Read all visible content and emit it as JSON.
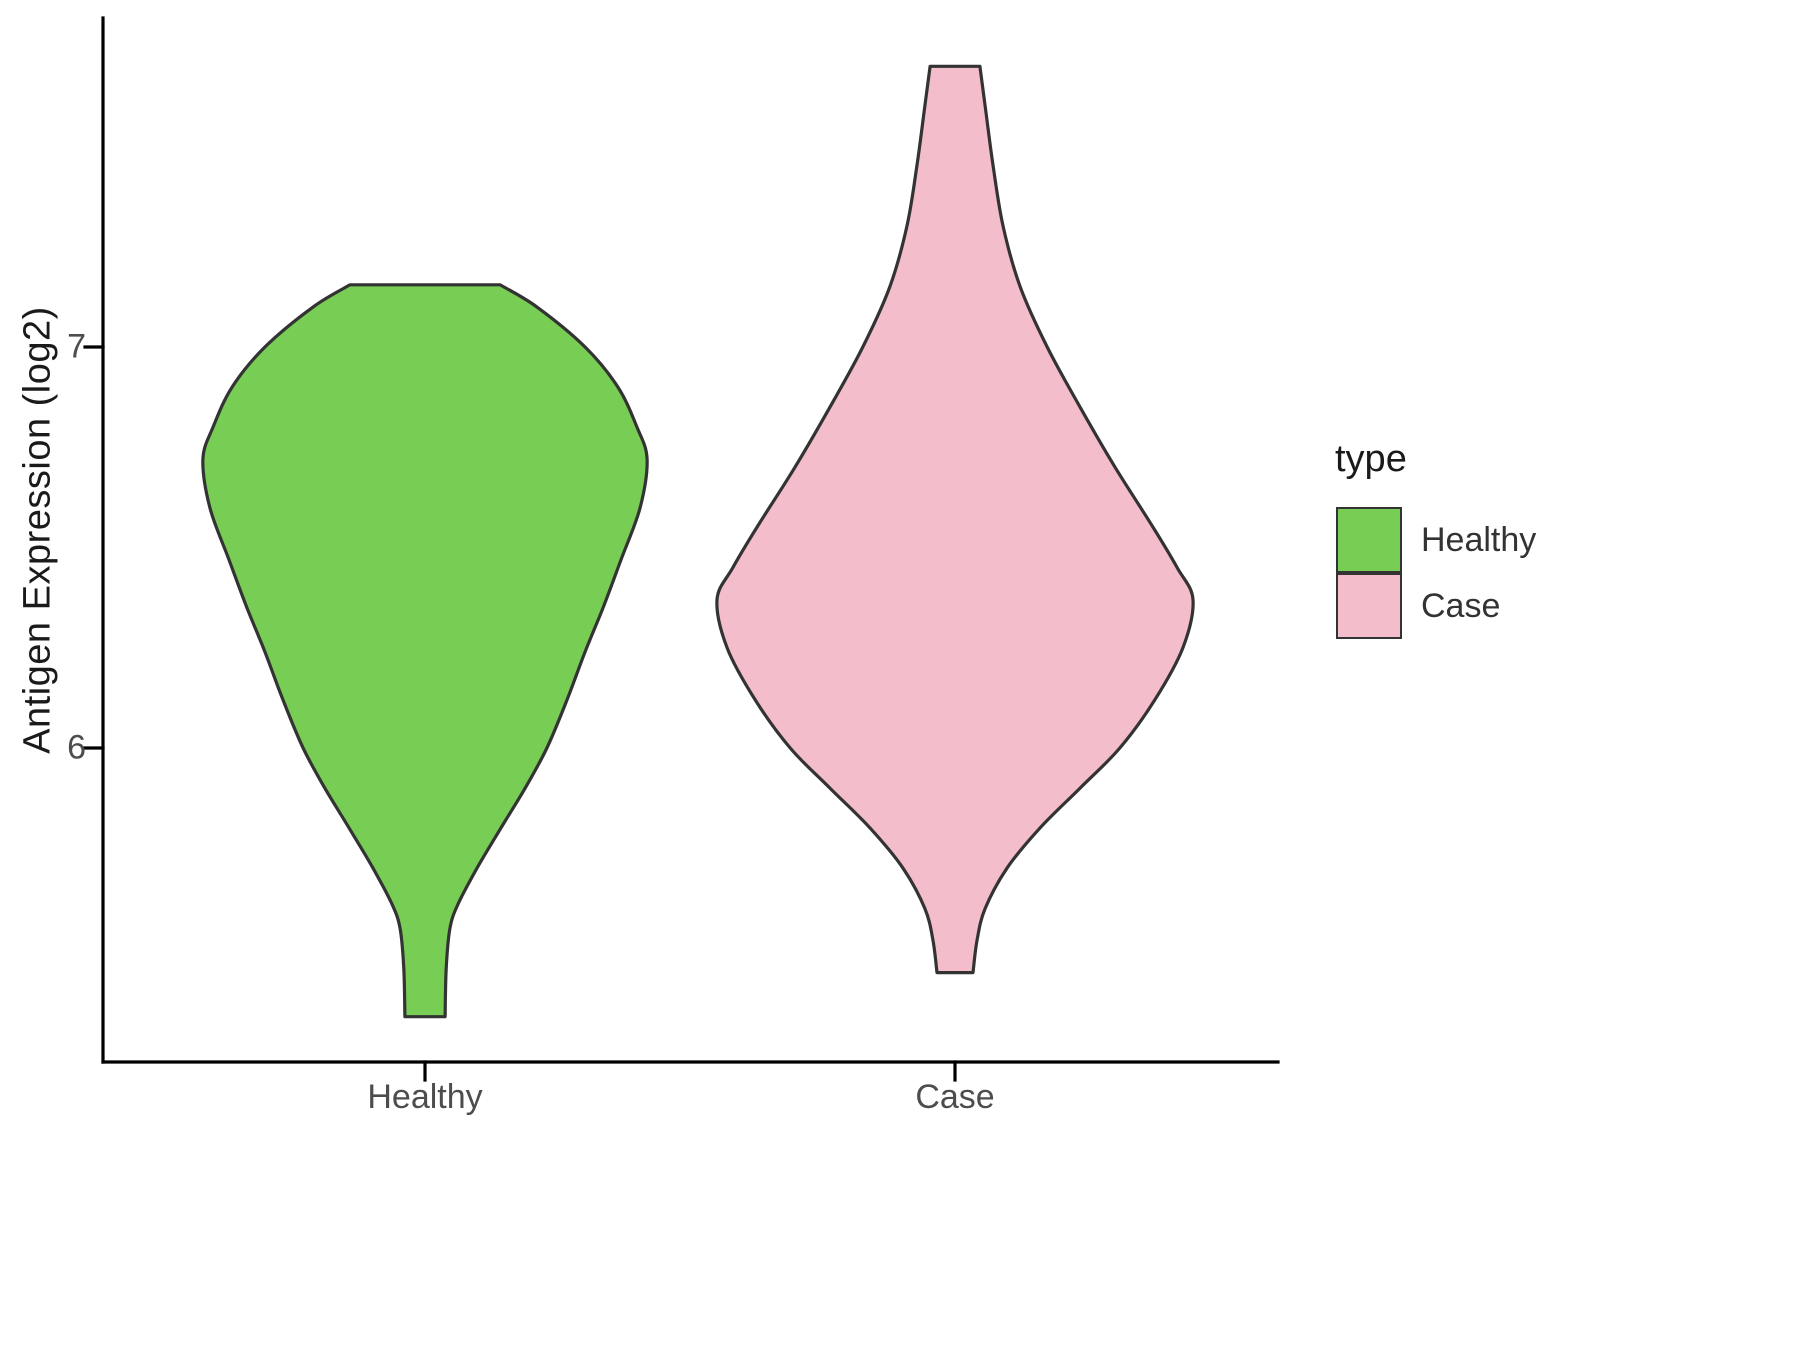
{
  "chart": {
    "y_axis_title": "Antigen Expression (log2)",
    "y_ticks": [
      {
        "value": 7,
        "label": "7"
      },
      {
        "value": 6,
        "label": "6"
      }
    ],
    "x_labels": [
      {
        "x": 1,
        "label": "Healthy"
      },
      {
        "x": 2,
        "label": "Case"
      }
    ]
  },
  "legend": {
    "title": "type",
    "items": [
      {
        "label": "Healthy",
        "color": "#78CE55"
      },
      {
        "label": "Case",
        "color": "#F4BDCB"
      }
    ]
  },
  "chart_data": {
    "type": "violin",
    "title": "",
    "xlabel": "",
    "ylabel": "Antigen Expression (log2)",
    "categories": [
      "Healthy",
      "Case"
    ],
    "y_tick_values": [
      6,
      7
    ],
    "ylim_visible": [
      5.2,
      7.85
    ],
    "legend_title": "type",
    "legend_position": "right",
    "grid": false,
    "outline_color": "#333333",
    "axis_color": "#000000",
    "series": [
      {
        "name": "Healthy",
        "x": 1,
        "color": "#78CE55",
        "min": 5.33,
        "max": 7.155,
        "peak_density_at": 6.72,
        "profile": [
          [
            7.155,
            0.1415
          ],
          [
            7.1,
            0.211
          ],
          [
            7.0,
            0.302
          ],
          [
            6.9,
            0.364
          ],
          [
            6.8,
            0.4
          ],
          [
            6.72,
            0.419
          ],
          [
            6.6,
            0.406
          ],
          [
            6.47,
            0.37
          ],
          [
            6.35,
            0.336
          ],
          [
            6.24,
            0.302
          ],
          [
            6.12,
            0.268
          ],
          [
            6.0,
            0.23
          ],
          [
            5.9,
            0.189
          ],
          [
            5.8,
            0.143
          ],
          [
            5.7,
            0.098
          ],
          [
            5.61,
            0.062
          ],
          [
            5.55,
            0.047
          ],
          [
            5.45,
            0.04
          ],
          [
            5.33,
            0.038
          ]
        ]
      },
      {
        "name": "Case",
        "x": 2,
        "color": "#F4BDCB",
        "min": 5.44,
        "max": 7.7,
        "peak_density_at": 6.37,
        "profile": [
          [
            7.7,
            0.047
          ],
          [
            7.6,
            0.057
          ],
          [
            7.45,
            0.072
          ],
          [
            7.3,
            0.091
          ],
          [
            7.15,
            0.123
          ],
          [
            7.0,
            0.174
          ],
          [
            6.85,
            0.236
          ],
          [
            6.7,
            0.302
          ],
          [
            6.55,
            0.374
          ],
          [
            6.45,
            0.419
          ],
          [
            6.37,
            0.449
          ],
          [
            6.25,
            0.43
          ],
          [
            6.12,
            0.377
          ],
          [
            6.0,
            0.311
          ],
          [
            5.9,
            0.236
          ],
          [
            5.8,
            0.16
          ],
          [
            5.7,
            0.098
          ],
          [
            5.6,
            0.057
          ],
          [
            5.52,
            0.0415
          ],
          [
            5.44,
            0.034
          ]
        ]
      }
    ]
  }
}
